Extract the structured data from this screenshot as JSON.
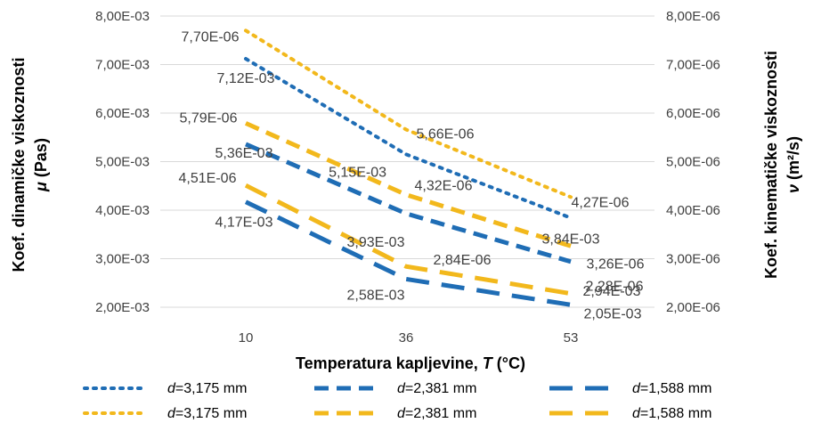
{
  "chart_data": {
    "type": "line",
    "x_axis": {
      "label_prefix": "Temperatura kapljevine, ",
      "label_var": "T",
      "label_unit": " (°C)",
      "categories": [
        "10",
        "36",
        "53"
      ]
    },
    "y_left": {
      "label_line1": "Koef. dinamičke viskoznosti",
      "label_sym": "μ",
      "label_unit": " (Pas)",
      "ylim": [
        0.002,
        0.008
      ],
      "tick_labels": [
        "2,00E-03",
        "3,00E-03",
        "4,00E-03",
        "5,00E-03",
        "6,00E-03",
        "7,00E-03",
        "8,00E-03"
      ]
    },
    "y_right": {
      "label_line1": "Koef. kinematičke viskoznosti",
      "label_sym": "ν",
      "label_unit": " (m²/s)",
      "ylim": [
        2e-06,
        8e-06
      ],
      "tick_labels": [
        "2,00E-06",
        "3,00E-06",
        "4,00E-06",
        "5,00E-06",
        "6,00E-06",
        "7,00E-06",
        "8,00E-06"
      ]
    },
    "grid": true,
    "legend_position": "bottom",
    "colors": {
      "blue": "#1f6db5",
      "gold": "#f2b81c",
      "grid": "#d9d9d9",
      "text": "#404040"
    },
    "series": [
      {
        "name": "d=3,175 mm",
        "prefix": "d",
        "suffix": "=3,175 mm",
        "axis": "left",
        "color": "#1f6db5",
        "dash": "dot",
        "values": [
          0.00712,
          0.00515,
          0.00384
        ],
        "labels": [
          "7,12E-03",
          "5,15E-03",
          "3,84E-03"
        ]
      },
      {
        "name": "d=2,381 mm",
        "prefix": "d",
        "suffix": "=2,381 mm",
        "axis": "left",
        "color": "#1f6db5",
        "dash": "dash",
        "values": [
          0.00536,
          0.00393,
          0.00294
        ],
        "labels": [
          "5,36E-03",
          "3,93E-03",
          "2,94E-03"
        ]
      },
      {
        "name": "d=1,588 mm",
        "prefix": "d",
        "suffix": "=1,588 mm",
        "axis": "left",
        "color": "#1f6db5",
        "dash": "longdash",
        "values": [
          0.00417,
          0.00258,
          0.00205
        ],
        "labels": [
          "4,17E-03",
          "2,58E-03",
          "2,05E-03"
        ]
      },
      {
        "name": "d=3,175 mm",
        "prefix": "d",
        "suffix": "=3,175 mm",
        "axis": "right",
        "color": "#f2b81c",
        "dash": "dot",
        "values": [
          7.7e-06,
          5.66e-06,
          4.27e-06
        ],
        "labels": [
          "7,70E-06",
          "5,66E-06",
          "4,27E-06"
        ]
      },
      {
        "name": "d=2,381 mm",
        "prefix": "d",
        "suffix": "=2,381 mm",
        "axis": "right",
        "color": "#f2b81c",
        "dash": "dash",
        "values": [
          5.79e-06,
          4.32e-06,
          3.26e-06
        ],
        "labels": [
          "5,79E-06",
          "4,32E-06",
          "3,26E-06"
        ]
      },
      {
        "name": "d=1,588 mm",
        "prefix": "d",
        "suffix": "=1,588 mm",
        "axis": "right",
        "color": "#f2b81c",
        "dash": "longdash",
        "values": [
          4.51e-06,
          2.84e-06,
          2.28e-06
        ],
        "labels": [
          "4,51E-06",
          "2,84E-06",
          "2,28E-06"
        ]
      }
    ]
  }
}
